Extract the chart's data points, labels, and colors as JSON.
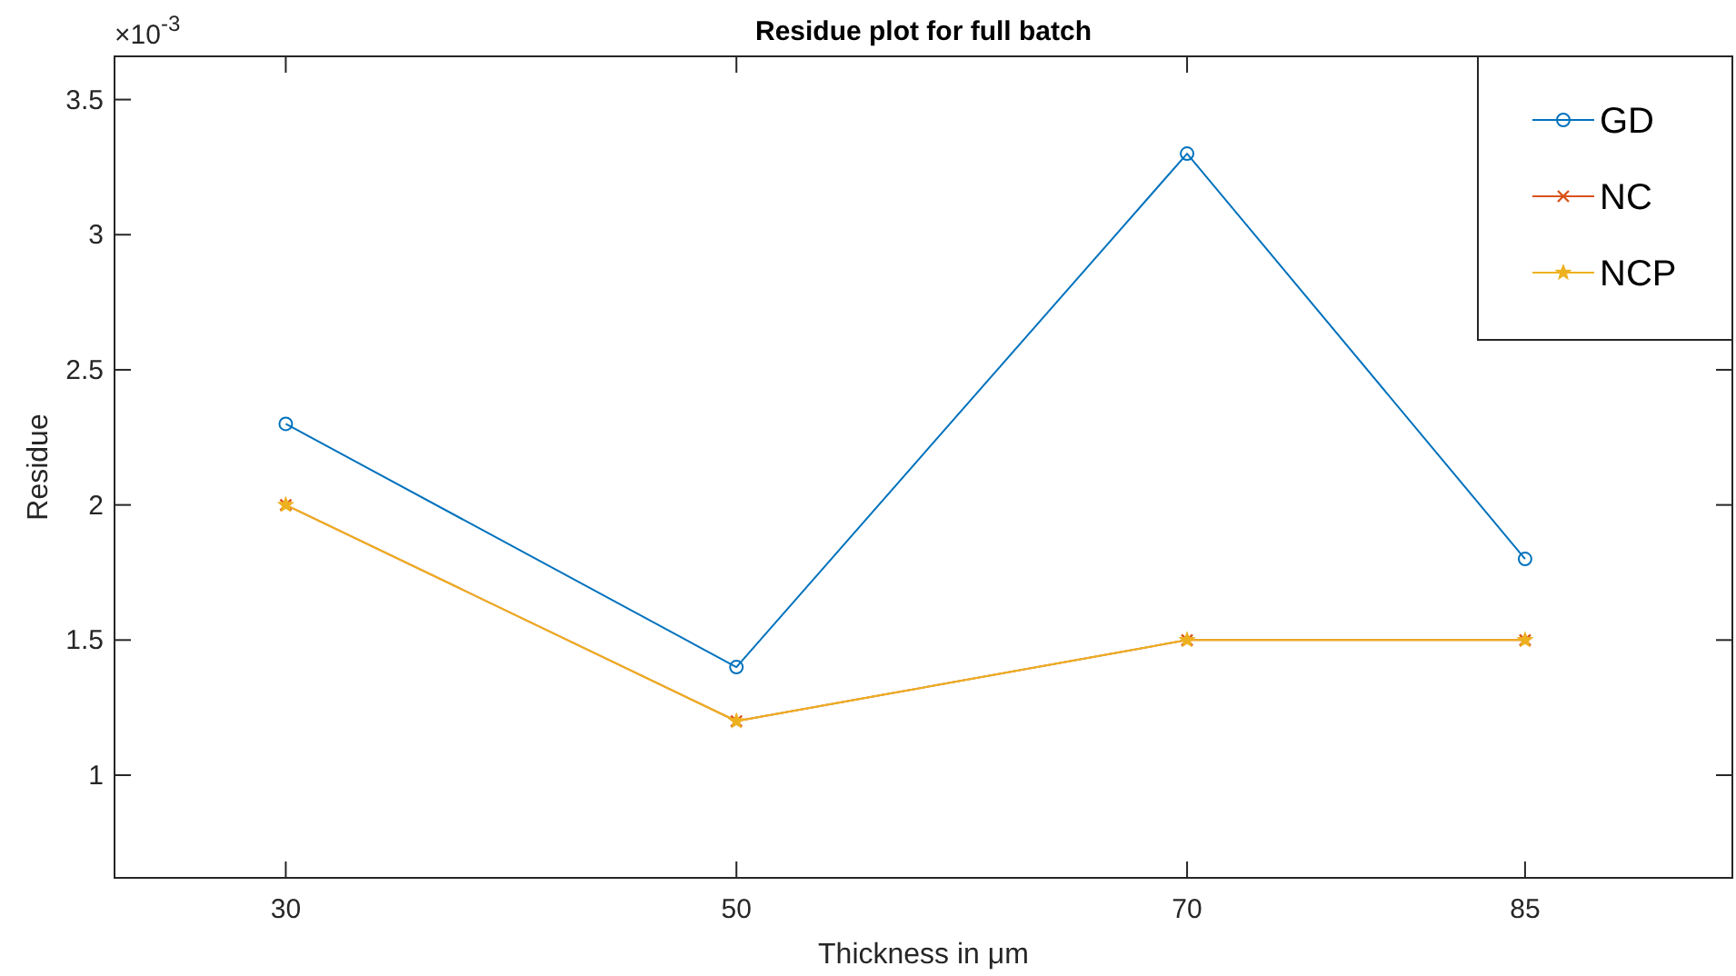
{
  "chart_data": {
    "type": "line",
    "title": "Residue plot for full batch",
    "xlabel": "Thickness in μm",
    "ylabel": "Residue",
    "annotations": [
      "×10$^{-3}$"
    ],
    "x": [
      30,
      50,
      70,
      85
    ],
    "series": [
      {
        "name": "GD",
        "color": "#0072bd",
        "marker": "circle",
        "values": [
          2.3,
          1.4,
          3.3,
          1.8
        ]
      },
      {
        "name": "NC",
        "color": "#d95319",
        "marker": "cross",
        "values": [
          2.0,
          1.2,
          1.5,
          1.5
        ]
      },
      {
        "name": "NCP",
        "color": "#edb120",
        "marker": "star",
        "values": [
          2.0,
          1.2,
          1.5,
          1.5
        ]
      }
    ],
    "xlim": [
      22.4,
      94.2
    ],
    "xticks": [
      30,
      50,
      70,
      85
    ],
    "ylim": [
      0.62,
      3.66
    ],
    "yticks": [
      1,
      1.5,
      2,
      2.5,
      3,
      3.5
    ],
    "legend": "top right",
    "grid": false,
    "line_style": "solid"
  }
}
